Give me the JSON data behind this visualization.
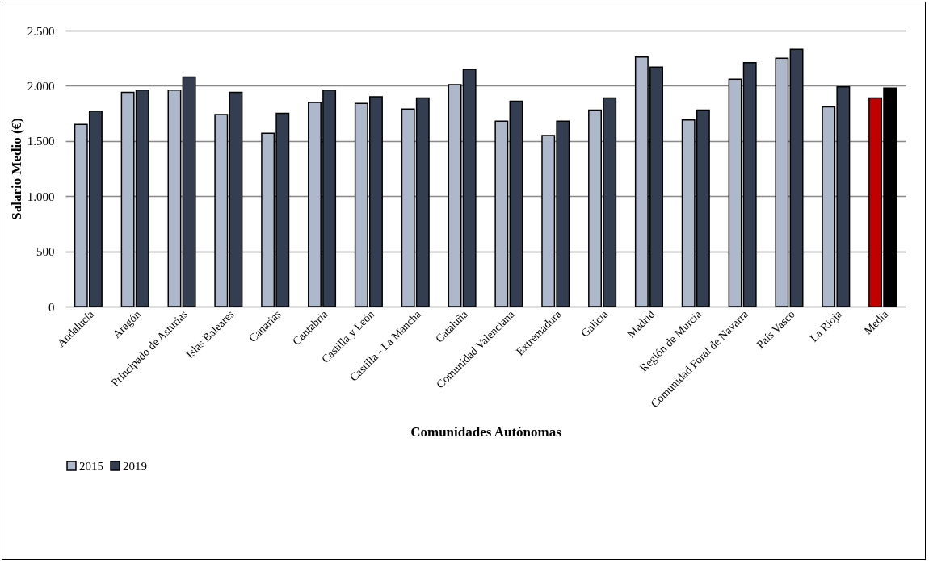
{
  "chart_data": {
    "type": "bar",
    "xlabel": "Comunidades Autónomas",
    "ylabel": "Salario Medio (€)",
    "categories": [
      "Andalucía",
      "Aragón",
      "Principado de Asturias",
      "Islas Baleares",
      "Canarias",
      "Cantabria",
      "Castilla y León",
      "Castilla - La Mancha",
      "Cataluña",
      "Comunidad Valenciana",
      "Extremadura",
      "Galicia",
      "Madrid",
      "Región de Murcia",
      "Comunidad Foral de Navarra",
      "País Vasco",
      "La Rioja",
      "Media"
    ],
    "series": [
      {
        "name": "2015",
        "color": "#adb9ca",
        "colors": [
          "#adb9ca",
          "#adb9ca",
          "#adb9ca",
          "#adb9ca",
          "#adb9ca",
          "#adb9ca",
          "#adb9ca",
          "#adb9ca",
          "#adb9ca",
          "#adb9ca",
          "#adb9ca",
          "#adb9ca",
          "#adb9ca",
          "#adb9ca",
          "#adb9ca",
          "#adb9ca",
          "#adb9ca",
          "#c00000"
        ],
        "values": [
          1650,
          1940,
          1960,
          1740,
          1570,
          1850,
          1840,
          1790,
          2010,
          1680,
          1550,
          1780,
          2260,
          1690,
          2060,
          2250,
          1810,
          1890
        ]
      },
      {
        "name": "2019",
        "color": "#333f50",
        "colors": [
          "#333f50",
          "#333f50",
          "#333f50",
          "#333f50",
          "#333f50",
          "#333f50",
          "#333f50",
          "#333f50",
          "#333f50",
          "#333f50",
          "#333f50",
          "#333f50",
          "#333f50",
          "#333f50",
          "#333f50",
          "#333f50",
          "#333f50",
          "#000000"
        ],
        "values": [
          1770,
          1960,
          2080,
          1940,
          1750,
          1960,
          1900,
          1890,
          2150,
          1860,
          1680,
          1890,
          2170,
          1780,
          2210,
          2330,
          1990,
          1980
        ]
      }
    ],
    "ylim": [
      0,
      2500
    ],
    "yticks": [
      0,
      500,
      {
        "value": 1000,
        "label": "1.000"
      },
      {
        "value": 1500,
        "label": "1.500"
      },
      {
        "value": 2000,
        "label": "2.000"
      },
      {
        "value": 2500,
        "label": "2.500"
      }
    ],
    "grid": "y",
    "legend": "bottom"
  }
}
